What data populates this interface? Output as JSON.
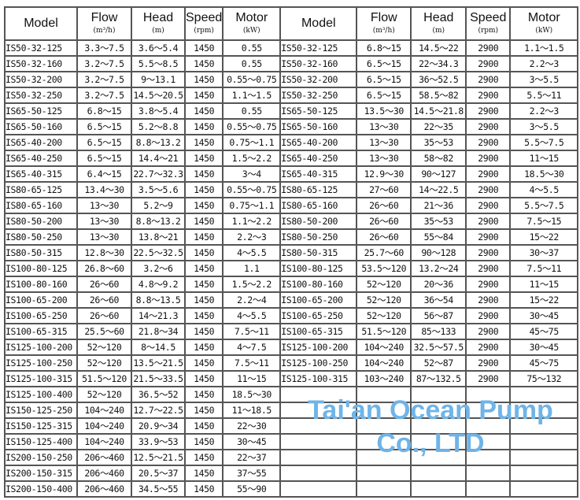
{
  "headers": [
    {
      "title": "Model",
      "unit": ""
    },
    {
      "title": "Flow",
      "unit": "(m³/h)"
    },
    {
      "title": "Head",
      "unit": "(m)"
    },
    {
      "title": "Speed",
      "unit": "(rpm)"
    },
    {
      "title": "Motor",
      "unit": "(kW)"
    }
  ],
  "left_rows": [
    [
      "IS50-32-125",
      "3.3～7.5",
      "3.6～5.4",
      "1450",
      "0.55"
    ],
    [
      "IS50-32-160",
      "3.2～7.5",
      "5.5～8.5",
      "1450",
      "0.55"
    ],
    [
      "IS50-32-200",
      "3.2～7.5",
      "9～13.1",
      "1450",
      "0.55～0.75"
    ],
    [
      "IS50-32-250",
      "3.2～7.5",
      "14.5～20.5",
      "1450",
      "1.1～1.5"
    ],
    [
      "IS65-50-125",
      "6.8～15",
      "3.8～5.4",
      "1450",
      "0.55"
    ],
    [
      "IS65-50-160",
      "6.5～15",
      "5.2～8.8",
      "1450",
      "0.55～0.75"
    ],
    [
      "IS65-40-200",
      "6.5～15",
      "8.8～13.2",
      "1450",
      "0.75～1.1"
    ],
    [
      "IS65-40-250",
      "6.5～15",
      "14.4～21",
      "1450",
      "1.5～2.2"
    ],
    [
      "IS65-40-315",
      "6.4～15",
      "22.7～32.3",
      "1450",
      "3～4"
    ],
    [
      "IS80-65-125",
      "13.4～30",
      "3.5～5.6",
      "1450",
      "0.55～0.75"
    ],
    [
      "IS80-65-160",
      "13～30",
      "5.2～9",
      "1450",
      "0.75～1.1"
    ],
    [
      "IS80-50-200",
      "13～30",
      "8.8～13.2",
      "1450",
      "1.1～2.2"
    ],
    [
      "IS80-50-250",
      "13～30",
      "13.8～21",
      "1450",
      "2.2～3"
    ],
    [
      "IS80-50-315",
      "12.8～30",
      "22.5～32.5",
      "1450",
      "4～5.5"
    ],
    [
      "IS100-80-125",
      "26.8～60",
      "3.2～6",
      "1450",
      "1.1"
    ],
    [
      "IS100-80-160",
      "26～60",
      "4.8～9.2",
      "1450",
      "1.5～2.2"
    ],
    [
      "IS100-65-200",
      "26～60",
      "8.8～13.5",
      "1450",
      "2.2～4"
    ],
    [
      "IS100-65-250",
      "26～60",
      "14～21.3",
      "1450",
      "4～5.5"
    ],
    [
      "IS100-65-315",
      "25.5～60",
      "21.8～34",
      "1450",
      "7.5～11"
    ],
    [
      "IS125-100-200",
      "52～120",
      "8～14.5",
      "1450",
      "4～7.5"
    ],
    [
      "IS125-100-250",
      "52～120",
      "13.5～21.5",
      "1450",
      "7.5～11"
    ],
    [
      "IS125-100-315",
      "51.5～120",
      "21.5～33.5",
      "1450",
      "11～15"
    ],
    [
      "IS125-100-400",
      "52～120",
      "36.5～52",
      "1450",
      "18.5～30"
    ],
    [
      "IS150-125-250",
      "104～240",
      "12.7～22.5",
      "1450",
      "11～18.5"
    ],
    [
      "IS150-125-315",
      "104～240",
      "20.9～34",
      "1450",
      "22～30"
    ],
    [
      "IS150-125-400",
      "104～240",
      "33.9～53",
      "1450",
      "30～45"
    ],
    [
      "IS200-150-250",
      "206～460",
      "12.5～21.5",
      "1450",
      "22～37"
    ],
    [
      "IS200-150-315",
      "206～460",
      "20.5～37",
      "1450",
      "37～55"
    ],
    [
      "IS200-150-400",
      "206～460",
      "34.5～55",
      "1450",
      "55～90"
    ]
  ],
  "right_rows": [
    [
      "IS50-32-125",
      "6.8～15",
      "14.5～22",
      "2900",
      "1.1～1.5"
    ],
    [
      "IS50-32-160",
      "6.5～15",
      "22～34.3",
      "2900",
      "2.2～3"
    ],
    [
      "IS50-32-200",
      "6.5～15",
      "36～52.5",
      "2900",
      "3～5.5"
    ],
    [
      "IS50-32-250",
      "6.5～15",
      "58.5～82",
      "2900",
      "5.5～11"
    ],
    [
      "IS65-50-125",
      "13.5～30",
      "14.5～21.8",
      "2900",
      "2.2～3"
    ],
    [
      "IS65-50-160",
      "13～30",
      "22～35",
      "2900",
      "3～5.5"
    ],
    [
      "IS65-40-200",
      "13～30",
      "35～53",
      "2900",
      "5.5～7.5"
    ],
    [
      "IS65-40-250",
      "13～30",
      "58～82",
      "2900",
      "11～15"
    ],
    [
      "IS65-40-315",
      "12.9～30",
      "90～127",
      "2900",
      "18.5～30"
    ],
    [
      "IS80-65-125",
      "27～60",
      "14～22.5",
      "2900",
      "4～5.5"
    ],
    [
      "IS80-65-160",
      "26～60",
      "21～36",
      "2900",
      "5.5～7.5"
    ],
    [
      "IS80-50-200",
      "26～60",
      "35～53",
      "2900",
      "7.5～15"
    ],
    [
      "IS80-50-250",
      "26～60",
      "55～84",
      "2900",
      "15～22"
    ],
    [
      "IS80-50-315",
      "25.7～60",
      "90～128",
      "2900",
      "30～37"
    ],
    [
      "IS100-80-125",
      "53.5～120",
      "13.2～24",
      "2900",
      "7.5～11"
    ],
    [
      "IS100-80-160",
      "52～120",
      "20～36",
      "2900",
      "11～15"
    ],
    [
      "IS100-65-200",
      "52～120",
      "36～54",
      "2900",
      "15～22"
    ],
    [
      "IS100-65-250",
      "52～120",
      "56～87",
      "2900",
      "30～45"
    ],
    [
      "IS100-65-315",
      "51.5～120",
      "85～133",
      "2900",
      "45～75"
    ],
    [
      "IS125-100-200",
      "104～240",
      "32.5～57.5",
      "2900",
      "30～45"
    ],
    [
      "IS125-100-250",
      "104～240",
      "52～87",
      "2900",
      "45～75"
    ],
    [
      "IS125-100-315",
      "103～240",
      "87～132.5",
      "2900",
      "75～132"
    ]
  ],
  "watermark": "Tai'an Ocean Pump Co., LTD",
  "colors": {
    "grid": "#555555",
    "watermark": "#3c96e1"
  }
}
